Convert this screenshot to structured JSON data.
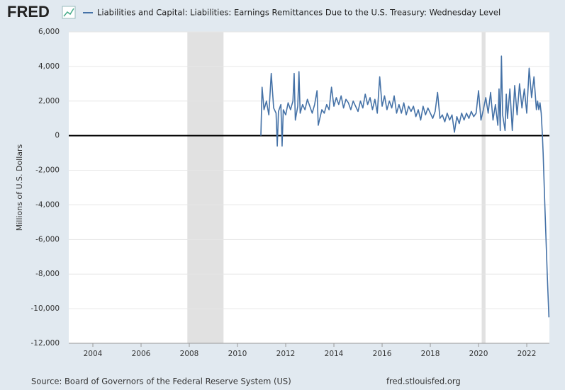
{
  "chart_data": {
    "type": "line",
    "logo": "FRED",
    "y_axis_label": "Millions of U.S. Dollars",
    "source": "Source: Board of Governors of the Federal Reserve System (US)",
    "url": "fred.stlouisfed.org",
    "grid": true,
    "xlim": [
      2003,
      2022.94
    ],
    "xticks": [
      2004,
      2006,
      2008,
      2010,
      2012,
      2014,
      2016,
      2018,
      2020,
      2022
    ],
    "ylim": [
      -12000,
      6000
    ],
    "yticks": [
      {
        "value": -12000,
        "label": "-12,000"
      },
      {
        "value": -10000,
        "label": "-10,000"
      },
      {
        "value": -8000,
        "label": "-8,000"
      },
      {
        "value": -6000,
        "label": "-6,000"
      },
      {
        "value": -4000,
        "label": "-4,000"
      },
      {
        "value": -2000,
        "label": "-2,000"
      },
      0,
      {
        "value": 2000,
        "label": "2,000"
      },
      {
        "value": 4000,
        "label": "4,000"
      },
      {
        "value": 6000,
        "label": "6,000"
      }
    ],
    "recessions": [
      [
        2007.92,
        2009.42
      ],
      [
        2020.13,
        2020.29
      ]
    ],
    "x": [
      2010.97,
      2011.02,
      2011.1,
      2011.2,
      2011.3,
      2011.4,
      2011.5,
      2011.6,
      2011.65,
      2011.7,
      2011.8,
      2011.85,
      2011.9,
      2012.0,
      2012.1,
      2012.2,
      2012.3,
      2012.35,
      2012.4,
      2012.5,
      2012.55,
      2012.6,
      2012.7,
      2012.8,
      2012.9,
      2013.0,
      2013.1,
      2013.2,
      2013.3,
      2013.35,
      2013.5,
      2013.6,
      2013.7,
      2013.8,
      2013.9,
      2014.0,
      2014.1,
      2014.2,
      2014.3,
      2014.4,
      2014.5,
      2014.6,
      2014.7,
      2014.8,
      2014.9,
      2015.0,
      2015.1,
      2015.2,
      2015.3,
      2015.4,
      2015.5,
      2015.6,
      2015.7,
      2015.8,
      2015.9,
      2016.0,
      2016.1,
      2016.2,
      2016.3,
      2016.4,
      2016.5,
      2016.6,
      2016.7,
      2016.8,
      2016.9,
      2017.0,
      2017.1,
      2017.2,
      2017.3,
      2017.4,
      2017.5,
      2017.6,
      2017.7,
      2017.8,
      2017.9,
      2018.0,
      2018.1,
      2018.2,
      2018.3,
      2018.4,
      2018.5,
      2018.6,
      2018.7,
      2018.8,
      2018.9,
      2019.0,
      2019.1,
      2019.2,
      2019.3,
      2019.4,
      2019.5,
      2019.6,
      2019.7,
      2019.8,
      2019.9,
      2020.0,
      2020.1,
      2020.2,
      2020.3,
      2020.4,
      2020.5,
      2020.6,
      2020.7,
      2020.8,
      2020.85,
      2020.9,
      2020.95,
      2021.0,
      2021.1,
      2021.15,
      2021.2,
      2021.3,
      2021.4,
      2021.5,
      2021.6,
      2021.7,
      2021.8,
      2021.9,
      2022.0,
      2022.1,
      2022.2,
      2022.3,
      2022.4,
      2022.45,
      2022.5,
      2022.55,
      2022.6,
      2022.65,
      2022.68,
      2022.75,
      2022.85,
      2022.92
    ],
    "series": [
      {
        "name": "Liabilities and Capital: Liabilities: Earnings Remittances Due to the U.S. Treasury: Wednesday Level",
        "color": "#4572a7",
        "values": [
          0,
          2800,
          1500,
          2000,
          1200,
          3600,
          1600,
          1300,
          -600,
          1400,
          1800,
          -600,
          1500,
          1200,
          1900,
          1500,
          2000,
          3600,
          900,
          1700,
          3700,
          1300,
          1800,
          1500,
          2100,
          1700,
          1300,
          1800,
          2600,
          600,
          1500,
          1300,
          1800,
          1500,
          2800,
          1700,
          2200,
          1800,
          2300,
          1600,
          2100,
          1900,
          1500,
          2000,
          1700,
          1400,
          2000,
          1600,
          2400,
          1800,
          2200,
          1500,
          2100,
          1300,
          3400,
          1700,
          2300,
          1500,
          2000,
          1600,
          2300,
          1300,
          1800,
          1300,
          1900,
          1200,
          1700,
          1400,
          1700,
          1100,
          1500,
          900,
          1700,
          1200,
          1600,
          1300,
          1000,
          1400,
          2500,
          1000,
          1200,
          800,
          1300,
          900,
          1200,
          200,
          1100,
          700,
          1300,
          900,
          1300,
          1000,
          1400,
          1100,
          1300,
          2600,
          900,
          1500,
          2200,
          1300,
          2500,
          900,
          1800,
          600,
          2700,
          300,
          4600,
          1200,
          300,
          2400,
          1000,
          2700,
          300,
          2900,
          1200,
          3000,
          1600,
          2700,
          1300,
          3900,
          2200,
          3400,
          1500,
          2000,
          1500,
          1900,
          1300,
          0,
          -1000,
          -4000,
          -8000,
          -10500
        ]
      }
    ]
  }
}
